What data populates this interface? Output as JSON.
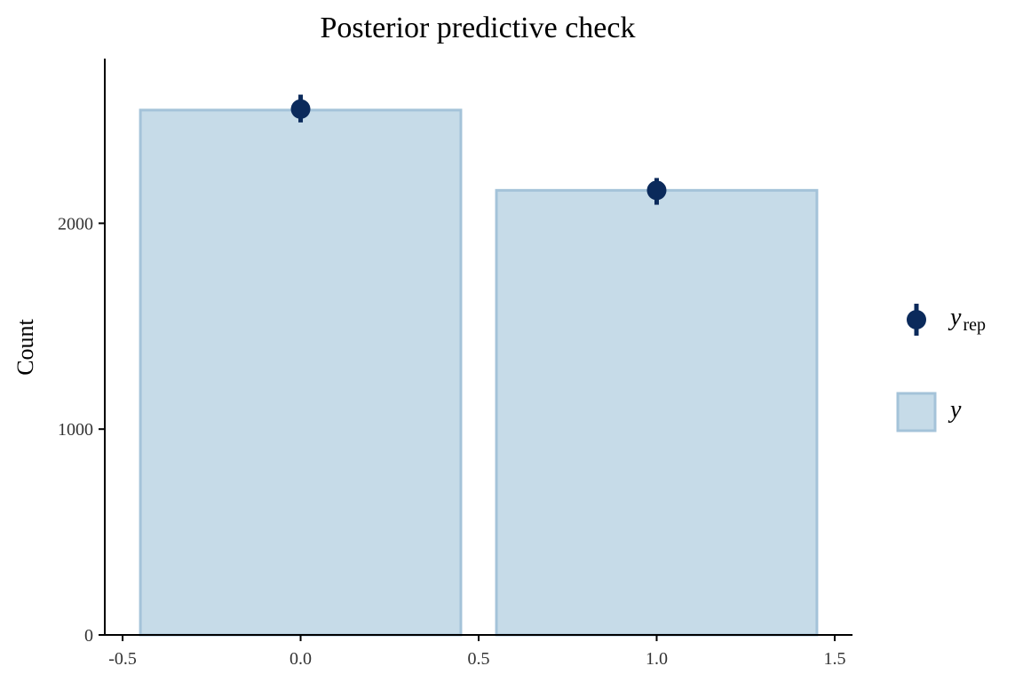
{
  "chart_data": {
    "type": "bar",
    "title": "Posterior predictive check",
    "xlabel": "",
    "ylabel": "Count",
    "xlim": [
      -0.55,
      1.55
    ],
    "ylim": [
      0,
      2800
    ],
    "xticks": [
      -0.5,
      0.0,
      0.5,
      1.0,
      1.5
    ],
    "xtick_labels": [
      "-0.5",
      "0.0",
      "0.5",
      "1.0",
      "1.5"
    ],
    "yticks": [
      0,
      1000,
      2000
    ],
    "ytick_labels": [
      "0",
      "1000",
      "2000"
    ],
    "bar_width": 0.9,
    "grid": false,
    "legend_position": "right",
    "series": [
      {
        "name": "y",
        "kind": "bar",
        "x": [
          0.0,
          1.0
        ],
        "values": [
          2550,
          2160
        ],
        "fill": "#c6dbe8",
        "stroke": "#a4c3d9"
      },
      {
        "name": "y_rep",
        "kind": "pointrange",
        "x": [
          0.0,
          1.0
        ],
        "values": [
          2555,
          2160
        ],
        "lower": [
          2490,
          2090
        ],
        "upper": [
          2625,
          2220
        ],
        "color": "#0b2a5b"
      }
    ],
    "legend": [
      {
        "symbol": "y",
        "subscript": "rep",
        "kind": "pointrange"
      },
      {
        "symbol": "y",
        "subscript": "",
        "kind": "bar"
      }
    ]
  }
}
